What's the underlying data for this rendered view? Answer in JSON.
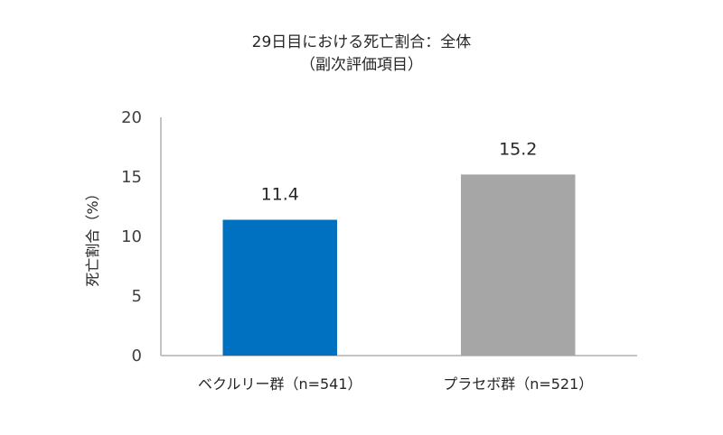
{
  "chart_data": {
    "type": "bar",
    "title": "29日目における死亡割合：全体",
    "subtitle": "（副次評価項目）",
    "xlabel": "",
    "ylabel": "死亡割合（%）",
    "categories": [
      "ベクルリー群（n=541）",
      "プラセボ群（n=521）"
    ],
    "values": [
      11.4,
      15.2
    ],
    "bar_colors": [
      "#0070c0",
      "#a6a6a6"
    ],
    "axis_color": "#b0b0b0",
    "ylim": [
      0,
      20
    ],
    "yticks": [
      0,
      5,
      10,
      15,
      20
    ],
    "grid": false,
    "legend": "none"
  }
}
